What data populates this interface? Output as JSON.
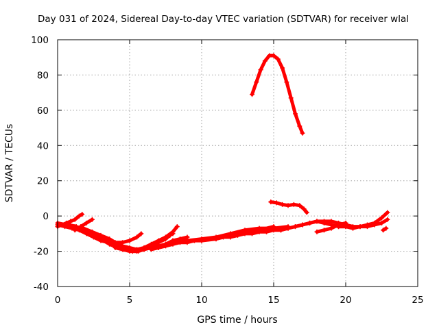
{
  "chart_data": {
    "type": "scatter",
    "title": "Day 031 of 2024, Sidereal Day-to-day VTEC variation (SDTVAR) for receiver wlal",
    "xlabel": "GPS time / hours",
    "ylabel": "SDTVAR / TECUs",
    "xlim": [
      0,
      25
    ],
    "ylim": [
      -40,
      100
    ],
    "xticks": [
      0,
      5,
      10,
      15,
      20,
      25
    ],
    "yticks": [
      -40,
      -20,
      0,
      20,
      40,
      60,
      80,
      100
    ],
    "grid": true,
    "colors": {
      "series": "#ff0000",
      "grid": "#a0a0a0",
      "axes": "#000000"
    },
    "series": [
      {
        "x": [
          0.0,
          0.3,
          0.6,
          0.9,
          1.2,
          1.5,
          1.7
        ],
        "y": [
          -6,
          -5,
          -4,
          -3,
          -2,
          0,
          1
        ]
      },
      {
        "x": [
          0.0,
          0.5,
          1.0,
          1.5,
          2.0,
          2.5,
          3.0,
          3.5,
          4.0,
          4.5,
          5.0,
          5.5
        ],
        "y": [
          -5,
          -6,
          -7,
          -8,
          -10,
          -12,
          -14,
          -15,
          -16,
          -17,
          -18,
          -19
        ]
      },
      {
        "x": [
          0.0,
          0.6,
          1.2,
          1.8,
          2.4,
          3.0,
          3.6,
          4.2,
          4.8,
          5.2
        ],
        "y": [
          -4,
          -5,
          -6,
          -7,
          -9,
          -11,
          -13,
          -16,
          -18,
          -20
        ]
      },
      {
        "x": [
          0.8,
          1.3,
          1.8,
          2.4,
          3.0,
          3.6,
          4.2,
          4.6
        ],
        "y": [
          -5,
          -6,
          -8,
          -10,
          -13,
          -16,
          -18,
          -19
        ]
      },
      {
        "x": [
          1.2,
          1.6,
          2.0,
          2.4
        ],
        "y": [
          -8,
          -6,
          -4,
          -2
        ]
      },
      {
        "x": [
          3.0,
          3.5,
          4.0,
          4.5,
          5.0,
          5.5,
          5.8
        ],
        "y": [
          -12,
          -14,
          -15,
          -15,
          -14,
          -12,
          -10
        ]
      },
      {
        "x": [
          4.0,
          4.5,
          5.0,
          5.5,
          6.0,
          6.5,
          7.0,
          7.5,
          8.0
        ],
        "y": [
          -18,
          -19,
          -20,
          -20,
          -19,
          -18,
          -17,
          -16,
          -15
        ]
      },
      {
        "x": [
          5.2,
          5.6,
          6.0,
          6.5,
          7.0,
          7.5,
          8.0,
          8.3
        ],
        "y": [
          -20,
          -20,
          -19,
          -17,
          -15,
          -12,
          -9,
          -6
        ]
      },
      {
        "x": [
          5.5,
          6.0,
          6.5,
          7.0,
          7.5,
          8.0
        ],
        "y": [
          -19,
          -18,
          -16,
          -14,
          -12,
          -10
        ]
      },
      {
        "x": [
          6.0,
          6.5,
          7.0,
          7.5,
          7.8
        ],
        "y": [
          -19,
          -17,
          -15,
          -13,
          -11
        ]
      },
      {
        "x": [
          7.0,
          7.5,
          8.0,
          8.5,
          9.0
        ],
        "y": [
          -18,
          -16,
          -14,
          -13,
          -12
        ]
      },
      {
        "x": [
          6.5,
          7.0,
          7.5,
          8.0,
          8.5,
          9.0,
          9.5,
          10.0,
          10.5,
          11.0,
          11.5,
          12.0,
          12.5,
          13.0,
          13.5,
          14.0,
          14.5,
          15.0,
          15.5,
          16.0
        ],
        "y": [
          -19,
          -18,
          -17,
          -16,
          -15,
          -15,
          -14,
          -14,
          -13,
          -13,
          -12,
          -12,
          -11,
          -10,
          -10,
          -9,
          -9,
          -8,
          -8,
          -7
        ]
      },
      {
        "x": [
          8.0,
          9.0,
          10.0,
          11.0,
          12.0,
          13.0,
          14.0,
          15.0,
          16.0
        ],
        "y": [
          -14,
          -14,
          -13,
          -12,
          -10,
          -8,
          -7,
          -7,
          -6
        ]
      },
      {
        "x": [
          10.0,
          11.0,
          12.0,
          13.0,
          14.0,
          15.0
        ],
        "y": [
          -14,
          -13,
          -11,
          -9,
          -8,
          -6
        ]
      },
      {
        "x": [
          13.5,
          13.8,
          14.1,
          14.4,
          14.7,
          15.0,
          15.3,
          15.6,
          15.9,
          16.2,
          16.5,
          16.8,
          17.0
        ],
        "y": [
          69,
          76,
          83,
          88,
          91,
          91,
          89,
          84,
          76,
          67,
          58,
          51,
          47
        ]
      },
      {
        "x": [
          14.8,
          15.2,
          15.6,
          16.0,
          16.4,
          16.8,
          17.1,
          17.3
        ],
        "y": [
          8,
          7.5,
          6.5,
          6,
          6.5,
          6,
          4,
          2
        ]
      },
      {
        "x": [
          15.5,
          16.0,
          16.5,
          17.0,
          17.5,
          18.0,
          18.5,
          19.0,
          19.5,
          20.0,
          20.5,
          21.0,
          21.5,
          22.0,
          22.5,
          22.9
        ],
        "y": [
          -8,
          -7,
          -6,
          -5,
          -4,
          -3,
          -3,
          -3,
          -4,
          -5,
          -6,
          -6,
          -6,
          -5,
          -4,
          -2
        ]
      },
      {
        "x": [
          16.5,
          17.0,
          17.5,
          18.0,
          18.5,
          19.0,
          19.5,
          20.0
        ],
        "y": [
          -6,
          -5,
          -4,
          -3,
          -4,
          -5,
          -6,
          -6
        ]
      },
      {
        "x": [
          18.0,
          18.5,
          19.0,
          19.5,
          20.0
        ],
        "y": [
          -9,
          -8,
          -7,
          -5,
          -4
        ]
      },
      {
        "x": [
          19.5,
          20.0,
          20.5,
          21.0,
          21.5,
          22.0,
          22.5,
          22.9
        ],
        "y": [
          -6,
          -6,
          -7,
          -6,
          -5,
          -4,
          -1,
          2
        ]
      },
      {
        "x": [
          22.6,
          22.8
        ],
        "y": [
          -8,
          -7
        ]
      }
    ]
  }
}
